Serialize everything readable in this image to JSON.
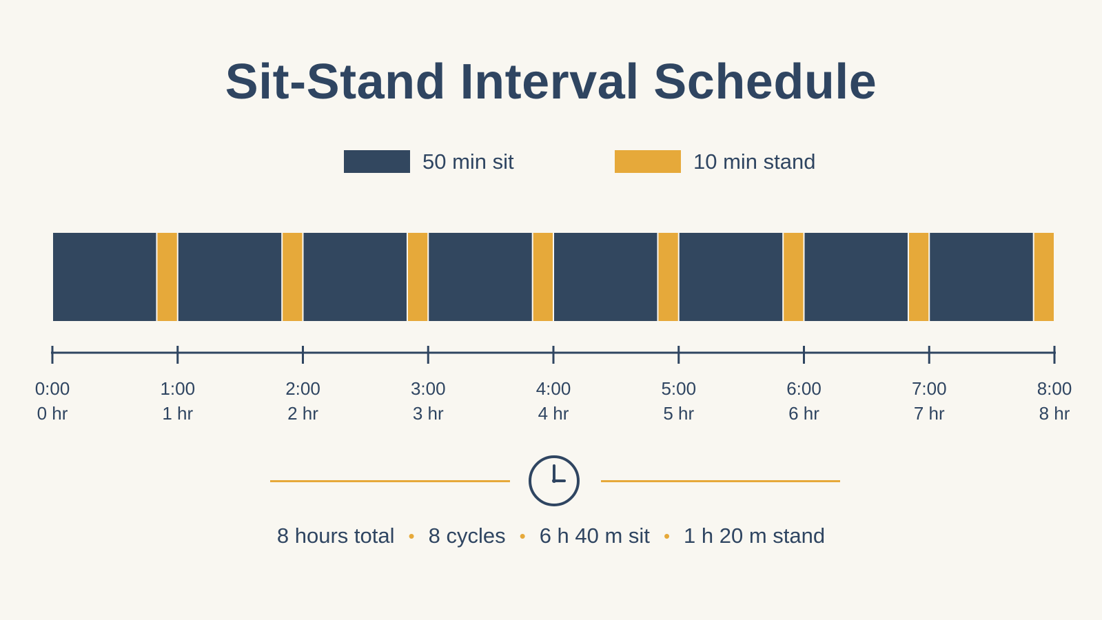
{
  "title": "Sit-Stand Interval Schedule",
  "legend": [
    {
      "label": "50 min sit",
      "color": "#32475f"
    },
    {
      "label": "10 min stand",
      "color": "#e6a93a"
    }
  ],
  "summary": {
    "total": "8  hours total",
    "cycles": "8  cycles",
    "sit": "6 h 40 m sit",
    "stand": "1 h 20 m stand",
    "separator": "•"
  },
  "chart_data": {
    "type": "bar",
    "title": "Sit-Stand Interval Schedule",
    "xlabel": "",
    "ylabel": "",
    "xlim": [
      0,
      480
    ],
    "unit": "minutes",
    "segments": [
      {
        "type": "sit",
        "start": 0,
        "end": 50
      },
      {
        "type": "stand",
        "start": 50,
        "end": 60
      },
      {
        "type": "sit",
        "start": 60,
        "end": 110
      },
      {
        "type": "stand",
        "start": 110,
        "end": 120
      },
      {
        "type": "sit",
        "start": 120,
        "end": 170
      },
      {
        "type": "stand",
        "start": 170,
        "end": 180
      },
      {
        "type": "sit",
        "start": 180,
        "end": 230
      },
      {
        "type": "stand",
        "start": 230,
        "end": 240
      },
      {
        "type": "sit",
        "start": 240,
        "end": 290
      },
      {
        "type": "stand",
        "start": 290,
        "end": 300
      },
      {
        "type": "sit",
        "start": 300,
        "end": 350
      },
      {
        "type": "stand",
        "start": 350,
        "end": 360
      },
      {
        "type": "sit",
        "start": 360,
        "end": 410
      },
      {
        "type": "stand",
        "start": 410,
        "end": 420
      },
      {
        "type": "sit",
        "start": 420,
        "end": 470
      },
      {
        "type": "stand",
        "start": 470,
        "end": 480
      }
    ],
    "ticks": [
      {
        "value": 0,
        "time": "0:00",
        "label": "0 hr"
      },
      {
        "value": 60,
        "time": "1:00",
        "label": "1 hr"
      },
      {
        "value": 120,
        "time": "2:00",
        "label": "2 hr"
      },
      {
        "value": 180,
        "time": "3:00",
        "label": "3 hr"
      },
      {
        "value": 240,
        "time": "4:00",
        "label": "4 hr"
      },
      {
        "value": 300,
        "time": "5:00",
        "label": "5 hr"
      },
      {
        "value": 360,
        "time": "6:00",
        "label": "6 hr"
      },
      {
        "value": 420,
        "time": "7:00",
        "label": "7 hr"
      },
      {
        "value": 480,
        "time": "8:00",
        "label": "8 hr"
      }
    ],
    "colors": {
      "sit": "#32475f",
      "stand": "#e6a93a",
      "axis": "#2f4561"
    }
  }
}
